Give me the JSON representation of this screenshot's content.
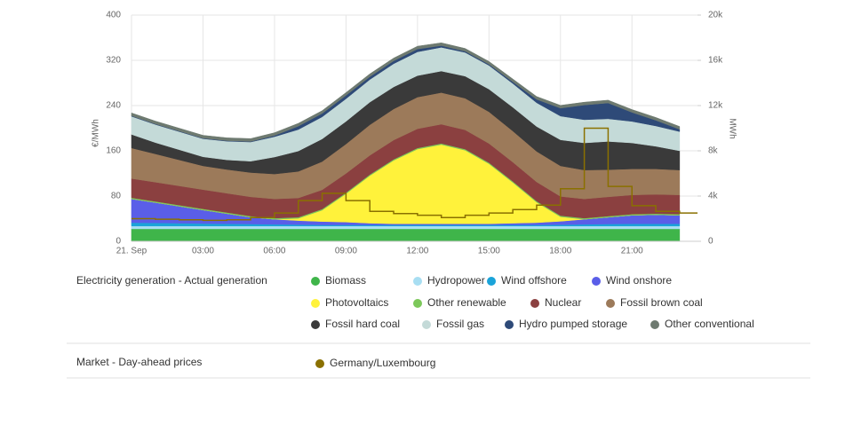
{
  "chart_data": {
    "type": "area",
    "stacked": true,
    "y_label": "€/MWh",
    "y2_label": "MWh",
    "generation_group": "Electricity generation - Actual generation",
    "price_group": "Market - Day-ahead prices",
    "x": [
      0,
      1,
      2,
      3,
      4,
      5,
      6,
      7,
      8,
      9,
      10,
      11,
      12,
      13,
      14,
      15,
      16,
      17,
      18,
      19,
      20,
      21,
      22,
      23
    ],
    "xlim": [
      0,
      23.75
    ],
    "xticks": [
      {
        "value": 0,
        "label": "21. Sep"
      },
      {
        "value": 3,
        "label": "03:00"
      },
      {
        "value": 6,
        "label": "06:00"
      },
      {
        "value": 9,
        "label": "09:00"
      },
      {
        "value": 12,
        "label": "12:00"
      },
      {
        "value": 15,
        "label": "15:00"
      },
      {
        "value": 18,
        "label": "18:00"
      },
      {
        "value": 21,
        "label": "21:00"
      }
    ],
    "ylim": [
      0,
      400
    ],
    "yticks": [
      0,
      80,
      160,
      240,
      320,
      400
    ],
    "y2lim": [
      0,
      20000
    ],
    "y2ticks": [
      0,
      {
        "value": 4000,
        "label": "4k"
      },
      {
        "value": 8000,
        "label": "8k"
      },
      {
        "value": 12000,
        "label": "12k"
      },
      {
        "value": 16000,
        "label": "16k"
      },
      {
        "value": 20000,
        "label": "20k"
      }
    ],
    "grid": true,
    "series": [
      {
        "name": "Biomass",
        "color": "#3fb54a",
        "axis": "y2",
        "values": [
          1100,
          1100,
          1100,
          1100,
          1100,
          1100,
          1100,
          1100,
          1100,
          1100,
          1100,
          1100,
          1100,
          1100,
          1100,
          1100,
          1100,
          1100,
          1100,
          1100,
          1100,
          1100,
          1100,
          1100
        ]
      },
      {
        "name": "Hydropower",
        "color": "#a8def2",
        "axis": "y2",
        "values": [
          250,
          250,
          250,
          250,
          250,
          250,
          250,
          250,
          250,
          250,
          250,
          250,
          250,
          250,
          250,
          250,
          250,
          250,
          250,
          250,
          250,
          250,
          250,
          250
        ]
      },
      {
        "name": "Wind offshore",
        "color": "#1aa3d9",
        "axis": "y2",
        "values": [
          300,
          280,
          250,
          220,
          200,
          180,
          150,
          130,
          100,
          100,
          100,
          100,
          100,
          100,
          100,
          100,
          100,
          100,
          120,
          150,
          180,
          200,
          200,
          200
        ]
      },
      {
        "name": "Wind onshore",
        "color": "#5a5ee8",
        "axis": "y2",
        "values": [
          2100,
          1800,
          1500,
          1200,
          900,
          600,
          450,
          350,
          300,
          250,
          150,
          100,
          100,
          100,
          100,
          100,
          150,
          200,
          300,
          450,
          600,
          750,
          800,
          750
        ]
      },
      {
        "name": "Photovoltaics",
        "color": "#fff23b",
        "axis": "y2",
        "values": [
          0,
          0,
          0,
          0,
          0,
          0,
          0,
          200,
          1000,
          2500,
          4200,
          5600,
          6600,
          7000,
          6500,
          5300,
          3600,
          1800,
          400,
          0,
          0,
          0,
          0,
          0
        ]
      },
      {
        "name": "Other renewable",
        "color": "#7cc85a",
        "axis": "y2",
        "values": [
          100,
          100,
          100,
          100,
          100,
          100,
          100,
          100,
          100,
          100,
          100,
          100,
          100,
          100,
          100,
          100,
          100,
          100,
          100,
          100,
          100,
          100,
          100,
          100
        ]
      },
      {
        "name": "Nuclear",
        "color": "#8b4040",
        "axis": "y2",
        "values": [
          1700,
          1700,
          1700,
          1700,
          1700,
          1700,
          1700,
          1700,
          1700,
          1700,
          1700,
          1700,
          1700,
          1700,
          1700,
          1700,
          1700,
          1700,
          1700,
          1700,
          1700,
          1700,
          1700,
          1700
        ]
      },
      {
        "name": "Fossil brown coal",
        "color": "#9c7a5a",
        "axis": "y2",
        "values": [
          2700,
          2500,
          2300,
          2100,
          2100,
          2150,
          2200,
          2350,
          2500,
          2600,
          2700,
          2750,
          2800,
          2800,
          2800,
          2800,
          2750,
          2700,
          2700,
          2550,
          2400,
          2300,
          2250,
          2200
        ]
      },
      {
        "name": "Fossil hard coal",
        "color": "#3a3a3a",
        "axis": "y2",
        "values": [
          1200,
          1000,
          900,
          800,
          850,
          1000,
          1500,
          1800,
          2000,
          2000,
          2000,
          1950,
          1900,
          1900,
          1950,
          2000,
          2100,
          2200,
          2300,
          2400,
          2500,
          2300,
          2000,
          1700
        ]
      },
      {
        "name": "Fossil gas",
        "color": "#c4dad8",
        "axis": "y2",
        "values": [
          1600,
          1600,
          1600,
          1600,
          1650,
          1700,
          1800,
          1900,
          1950,
          2000,
          2000,
          2050,
          2100,
          2100,
          2100,
          2100,
          2100,
          2100,
          2100,
          2050,
          2000,
          1900,
          1800,
          1700
        ]
      },
      {
        "name": "Hydro pumped storage",
        "color": "#2e4a78",
        "axis": "y2",
        "values": [
          50,
          50,
          50,
          50,
          50,
          50,
          100,
          300,
          300,
          300,
          250,
          250,
          250,
          150,
          100,
          100,
          150,
          300,
          700,
          1300,
          1400,
          800,
          500,
          200
        ]
      },
      {
        "name": "Other conventional",
        "color": "#6e7a70",
        "axis": "y2",
        "values": [
          250,
          250,
          250,
          250,
          250,
          250,
          250,
          250,
          250,
          250,
          250,
          250,
          250,
          250,
          250,
          250,
          250,
          250,
          250,
          250,
          250,
          250,
          250,
          250
        ]
      },
      {
        "name": "Germany/Luxembourg",
        "color": "#8a7000",
        "axis": "y",
        "type": "step",
        "values": [
          40,
          39,
          38,
          37,
          38,
          42,
          50,
          72,
          85,
          72,
          53,
          49,
          46,
          42,
          46,
          50,
          56,
          64,
          93,
          200,
          97,
          63,
          53,
          50
        ]
      }
    ]
  }
}
